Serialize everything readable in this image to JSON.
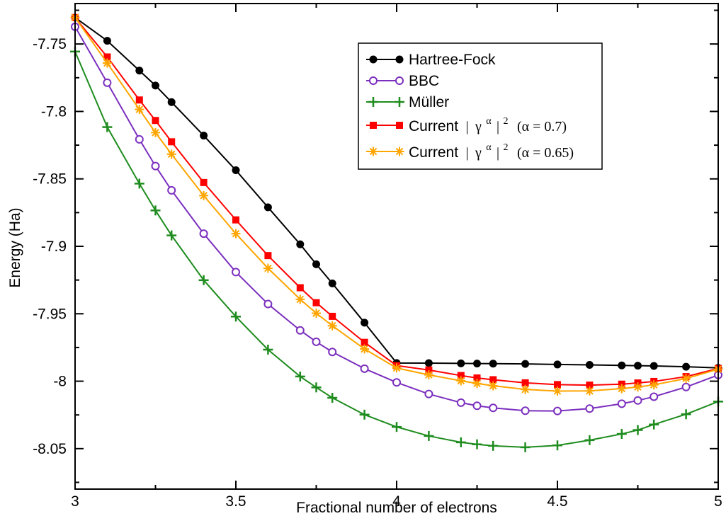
{
  "chart_data": {
    "type": "line",
    "title": "",
    "xlabel": "Fractional number of electrons",
    "ylabel": "Energy (Ha)",
    "xlim": [
      3,
      5
    ],
    "ylim": [
      -8.08,
      -7.72
    ],
    "xticks": [
      3,
      3.5,
      4,
      4.5,
      5
    ],
    "xtick_labels": [
      "3",
      "3.5",
      "4",
      "4.5",
      "5"
    ],
    "yticks": [
      -7.75,
      -7.8,
      -7.85,
      -7.9,
      -7.95,
      -8.0,
      -8.05
    ],
    "ytick_labels": [
      "-7.75",
      "-7.8",
      "-7.85",
      "-7.9",
      "-7.95",
      "-8",
      "-8.05"
    ],
    "grid": false,
    "legend_position": "top-right",
    "x": [
      3,
      3.1,
      3.2,
      3.25,
      3.3,
      3.4,
      3.5,
      3.6,
      3.7,
      3.75,
      3.8,
      3.9,
      4,
      4.1,
      4.2,
      4.25,
      4.3,
      4.4,
      4.5,
      4.6,
      4.7,
      4.75,
      4.8,
      4.9,
      5
    ],
    "series": [
      {
        "name": "Hartree-Fock",
        "marker": "filled-circle",
        "color": "#000000",
        "values": [
          -7.7304,
          -7.7476,
          -7.7697,
          -7.7808,
          -7.7931,
          -7.8179,
          -7.8436,
          -7.8711,
          -7.8985,
          -7.9133,
          -7.9275,
          -7.9566,
          -7.9865,
          -7.9866,
          -7.9868,
          -7.9869,
          -7.987,
          -7.9872,
          -7.9876,
          -7.9879,
          -7.9883,
          -7.9885,
          -7.9887,
          -7.9893,
          -7.9901
        ]
      },
      {
        "name": "BBC",
        "marker": "open-circle",
        "color": "#7b2fbe",
        "values": [
          -7.7372,
          -7.7787,
          -7.8207,
          -7.8405,
          -7.8585,
          -7.8906,
          -7.9191,
          -7.9428,
          -7.9623,
          -7.9708,
          -7.9783,
          -7.9907,
          -8.0009,
          -8.0095,
          -8.0159,
          -8.0182,
          -8.0198,
          -8.0219,
          -8.0221,
          -8.0203,
          -8.0167,
          -8.0143,
          -8.0115,
          -8.0043,
          -7.9954
        ]
      },
      {
        "name": "Müller",
        "marker": "plus",
        "color": "#1e8c1e",
        "values": [
          -7.7556,
          -7.8116,
          -7.8535,
          -7.8734,
          -7.8919,
          -7.9251,
          -7.9521,
          -7.9766,
          -7.9965,
          -8.0046,
          -8.0123,
          -8.0248,
          -8.0339,
          -8.0406,
          -8.0453,
          -8.0468,
          -8.0479,
          -8.049,
          -8.0476,
          -8.0437,
          -8.0391,
          -8.0362,
          -8.0321,
          -8.0245,
          -8.0151
        ]
      },
      {
        "name": "Current | γ^α |^2 (α = 0.7)",
        "marker": "filled-square",
        "color": "#ff0000",
        "values": [
          -7.7304,
          -7.7596,
          -7.7915,
          -7.8067,
          -7.8225,
          -7.8527,
          -7.8804,
          -7.9069,
          -7.9307,
          -7.9418,
          -7.9519,
          -7.9712,
          -7.9884,
          -7.9917,
          -7.9958,
          -7.9976,
          -7.9989,
          -8.0012,
          -8.0025,
          -8.0029,
          -8.0022,
          -8.0013,
          -8.0002,
          -7.9966,
          -7.9906
        ]
      },
      {
        "name": "Current | γ^α |^2 (α = 0.65)",
        "marker": "asterisk",
        "color": "#ffa500",
        "values": [
          -7.7304,
          -7.7641,
          -7.7985,
          -7.8157,
          -7.8317,
          -7.8624,
          -7.8906,
          -7.9163,
          -7.9393,
          -7.9496,
          -7.9589,
          -7.9761,
          -7.9902,
          -7.9953,
          -7.9997,
          -8.0017,
          -8.0034,
          -8.0061,
          -8.0073,
          -8.0072,
          -8.0055,
          -8.0043,
          -8.0027,
          -7.998,
          -7.9911
        ]
      }
    ]
  },
  "legend": {
    "items": [
      {
        "label": "Hartree-Fock"
      },
      {
        "label": "BBC"
      },
      {
        "label": "Müller"
      },
      {
        "prefix": "Current",
        "bar1": "|",
        "gamma": "γ",
        "alpha_sup": "α",
        "bar2": "|",
        "pow_sup": "2",
        "param": "(α = 0.7)"
      },
      {
        "prefix": "Current",
        "bar1": "|",
        "gamma": "γ",
        "alpha_sup": "α",
        "bar2": "|",
        "pow_sup": "2",
        "param": "(α = 0.65)"
      }
    ]
  }
}
